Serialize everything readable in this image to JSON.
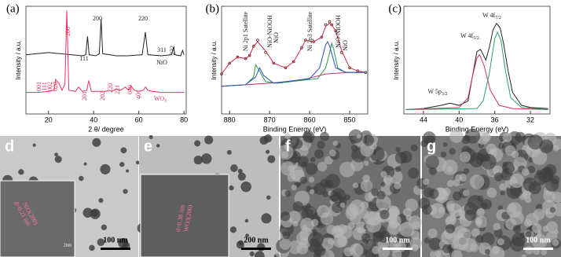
{
  "chart_data": [
    {
      "type": "line",
      "panel": "(a)",
      "ylabel": "Intensity / a.u.",
      "xlabel": "2 θ/ degree",
      "xlim": [
        10,
        81
      ],
      "ylim": [
        0,
        100
      ],
      "xticks": [
        20,
        40,
        60,
        80
      ],
      "series": [
        {
          "color": "#222222",
          "x": [
            10,
            15,
            20,
            25,
            30,
            35,
            36.5,
            37.3,
            38,
            41,
            42.5,
            43.3,
            44,
            50,
            55,
            61.5,
            62.9,
            64,
            70,
            74.5,
            75.4,
            76,
            78.5,
            79.4,
            80
          ],
          "values": [
            55,
            56,
            57,
            56,
            55,
            54,
            55,
            72,
            55,
            54,
            56,
            88,
            56,
            54,
            54,
            55,
            76,
            55,
            54,
            55,
            62,
            55,
            54,
            59,
            55
          ]
        },
        {
          "color": "#e8325a",
          "x": [
            10,
            15,
            20,
            22.5,
            23.2,
            24,
            24.5,
            26,
            27.3,
            28.1,
            29,
            32,
            33.3,
            35,
            37,
            37.8,
            39,
            42,
            45,
            47,
            48,
            50,
            52,
            54,
            55.5,
            56.5,
            58,
            60,
            62,
            63,
            64,
            66,
            70,
            75,
            80
          ],
          "values": [
            20,
            20,
            21,
            22,
            32,
            30,
            29,
            22,
            28,
            96,
            22,
            21,
            25,
            21,
            22,
            31,
            21,
            21,
            21,
            22,
            21,
            23,
            22,
            25,
            22,
            26,
            22,
            21,
            22,
            25,
            22,
            21,
            20,
            20,
            20
          ]
        }
      ],
      "annotations": [
        {
          "text": "111",
          "color": "#222222"
        },
        {
          "text": "200",
          "color": "#222222"
        },
        {
          "text": "220",
          "color": "#222222"
        },
        {
          "text": "311",
          "color": "#222222"
        },
        {
          "text": "222",
          "color": "#222222"
        },
        {
          "text": "NiO",
          "color": "#222222"
        },
        {
          "text": "200",
          "color": "#e8325a"
        },
        {
          "text": "001",
          "color": "#e8325a"
        },
        {
          "text": "111",
          "color": "#e8325a"
        },
        {
          "text": "002",
          "color": "#e8325a"
        },
        {
          "text": "020",
          "color": "#e8325a"
        },
        {
          "text": "201",
          "color": "#e8325a"
        },
        {
          "text": "202",
          "color": "#e8325a"
        },
        {
          "text": "220",
          "color": "#e8325a"
        },
        {
          "text": "221",
          "color": "#e8325a"
        },
        {
          "text": "040",
          "color": "#e8325a"
        },
        {
          "text": "401",
          "color": "#e8325a"
        },
        {
          "text": "WO",
          "sub": "3",
          "color": "#e8325a"
        }
      ]
    },
    {
      "type": "line",
      "panel": "(b)",
      "ylabel": "Intensity / a.u.",
      "xlabel": "Binding Energy (eV)",
      "xlim": [
        882,
        845.5
      ],
      "ylim": [
        0,
        70
      ],
      "xticks": [
        880,
        870,
        860,
        850
      ],
      "series": [
        {
          "color": "#5a2a1a",
          "marker": "circle",
          "x": [
            882,
            880,
            878,
            876,
            875,
            874,
            873,
            871,
            869,
            866,
            864,
            862,
            861,
            859,
            857,
            856,
            855,
            854.5,
            853.5,
            852,
            850,
            848,
            846
          ],
          "values": [
            26,
            33,
            37,
            36,
            38,
            44,
            48,
            40,
            33,
            30,
            34,
            43,
            48,
            47,
            50,
            58,
            60,
            58,
            54,
            40,
            30,
            28,
            27
          ]
        },
        {
          "color": "#cc2a4a",
          "x": [
            882,
            880,
            878,
            876,
            875,
            874,
            873,
            871,
            869,
            866,
            864,
            862,
            861,
            859,
            857,
            856,
            855,
            854.5,
            853.5,
            852,
            850,
            848,
            846
          ],
          "values": [
            26,
            33,
            37,
            36,
            38,
            44,
            47,
            41,
            33,
            30,
            34,
            43,
            48,
            47,
            50,
            57,
            59,
            58,
            54,
            41,
            30,
            28,
            27
          ]
        },
        {
          "color": "#c0306a",
          "x": [
            882,
            870,
            862,
            856,
            850,
            846
          ],
          "values": [
            18,
            20,
            22,
            26,
            27,
            27
          ]
        },
        {
          "color": "#2a9a4a",
          "x": [
            882,
            876,
            874,
            873.5,
            873,
            871,
            868,
            858,
            856,
            855,
            854.5,
            854,
            853,
            851,
            846
          ],
          "values": [
            18,
            19,
            24,
            32,
            30,
            21,
            20,
            23,
            30,
            40,
            46,
            42,
            30,
            27,
            27
          ]
        },
        {
          "color": "#2a4ac0",
          "x": [
            882,
            876,
            873.5,
            872.5,
            871.5,
            869,
            860,
            857.5,
            856,
            855.5,
            855,
            853.5,
            851,
            846
          ],
          "values": [
            18,
            19,
            24,
            30,
            25,
            20,
            23,
            30,
            45,
            47,
            44,
            30,
            27,
            27
          ]
        }
      ],
      "annotations": [
        {
          "text": "Ni 2p1 Satellite"
        },
        {
          "text": "NiO-NiOOH"
        },
        {
          "text": "NiO"
        },
        {
          "text": "Ni 2p3 Satellite"
        },
        {
          "text": "NiO-NiOOH"
        },
        {
          "text": "NiO"
        }
      ]
    },
    {
      "type": "line",
      "panel": "(c)",
      "ylabel": "Intensity / a.u.",
      "xlabel": "Binding Energy (eV)",
      "xlim": [
        46.2,
        29.8
      ],
      "ylim": [
        0,
        100
      ],
      "xticks": [
        44,
        40,
        36,
        32
      ],
      "series": [
        {
          "color": "#222222",
          "x": [
            46,
            44,
            42,
            41,
            40,
            39,
            38.5,
            38,
            37.6,
            37,
            36.6,
            36.2,
            35.8,
            35.4,
            35,
            34.5,
            34,
            33,
            32,
            30
          ],
          "values": [
            4,
            5,
            8,
            10,
            8,
            12,
            35,
            58,
            60,
            50,
            62,
            78,
            84,
            80,
            65,
            40,
            20,
            8,
            6,
            5
          ]
        },
        {
          "color": "#d0306a",
          "x": [
            46,
            40,
            39,
            38.5,
            38,
            37.7,
            37.2,
            36.5,
            35.5,
            34,
            30
          ],
          "values": [
            4,
            6,
            15,
            35,
            52,
            55,
            45,
            22,
            8,
            5,
            4
          ]
        },
        {
          "color": "#2aa060",
          "x": [
            46,
            38,
            37.3,
            36.6,
            36,
            35.7,
            35.3,
            34.8,
            34.2,
            33,
            30
          ],
          "values": [
            4,
            5,
            12,
            38,
            70,
            76,
            68,
            40,
            15,
            6,
            4
          ]
        }
      ],
      "annotations": [
        {
          "text": "W 5p",
          "sub": "3/2"
        },
        {
          "text": "W 4f",
          "sub": "5/2"
        },
        {
          "text": "W 4f",
          "sub": "7/2"
        }
      ]
    }
  ],
  "micrographs": [
    {
      "label": "d",
      "scale_bar": "100 nm",
      "inset_scale": "2nm",
      "inset_texts": [
        "d=0.21 nm",
        "NiO(200)"
      ]
    },
    {
      "label": "e",
      "scale_bar": "200 nm",
      "inset_texts": [
        "d=0.38 nm",
        "WO3(200)"
      ]
    },
    {
      "label": "f",
      "scale_bar": "100 nm"
    },
    {
      "label": "g",
      "scale_bar": "100 nm"
    }
  ]
}
